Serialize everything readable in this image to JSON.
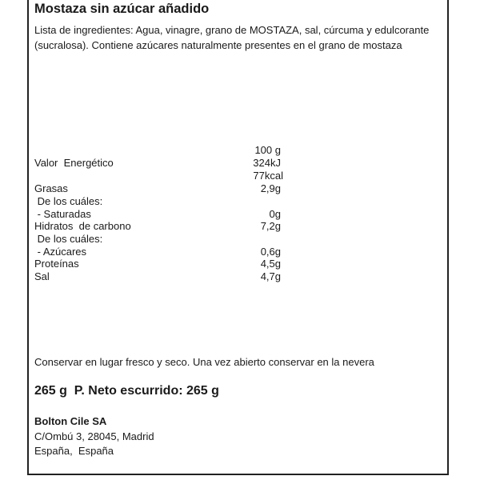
{
  "title": "Mostaza sin azúcar añadido",
  "ingredients": "Lista de ingredientes: Agua, vinagre, grano de MOSTAZA, sal, cúrcuma y edulcorante (sucralosa). Contiene azúcares naturalmente presentes en el grano de mostaza",
  "nutrition": {
    "header": "100 g",
    "rows": [
      {
        "label": "Valor  Energético",
        "value": "324kJ"
      },
      {
        "label": "",
        "value": "77kcal"
      },
      {
        "label": "Grasas",
        "value": "2,9g"
      },
      {
        "label": " De los cuáles:",
        "value": ""
      },
      {
        "label": " - Saturadas",
        "value": "0g"
      },
      {
        "label": "Hidratos  de carbono",
        "value": "7,2g"
      },
      {
        "label": " De los cuáles:",
        "value": ""
      },
      {
        "label": " - Azúcares",
        "value": "0,6g"
      },
      {
        "label": "Proteínas",
        "value": "4,5g"
      },
      {
        "label": "Sal",
        "value": "4,7g"
      }
    ]
  },
  "storage": "Conservar en lugar fresco y seco. Una vez abierto conservar en la nevera",
  "net_weight": "265 g  P. Neto escurrido: 265 g",
  "company": {
    "name": "Bolton Cile SA",
    "address": "C/Ombú 3, 28045, Madrid",
    "country": "España,  España"
  }
}
